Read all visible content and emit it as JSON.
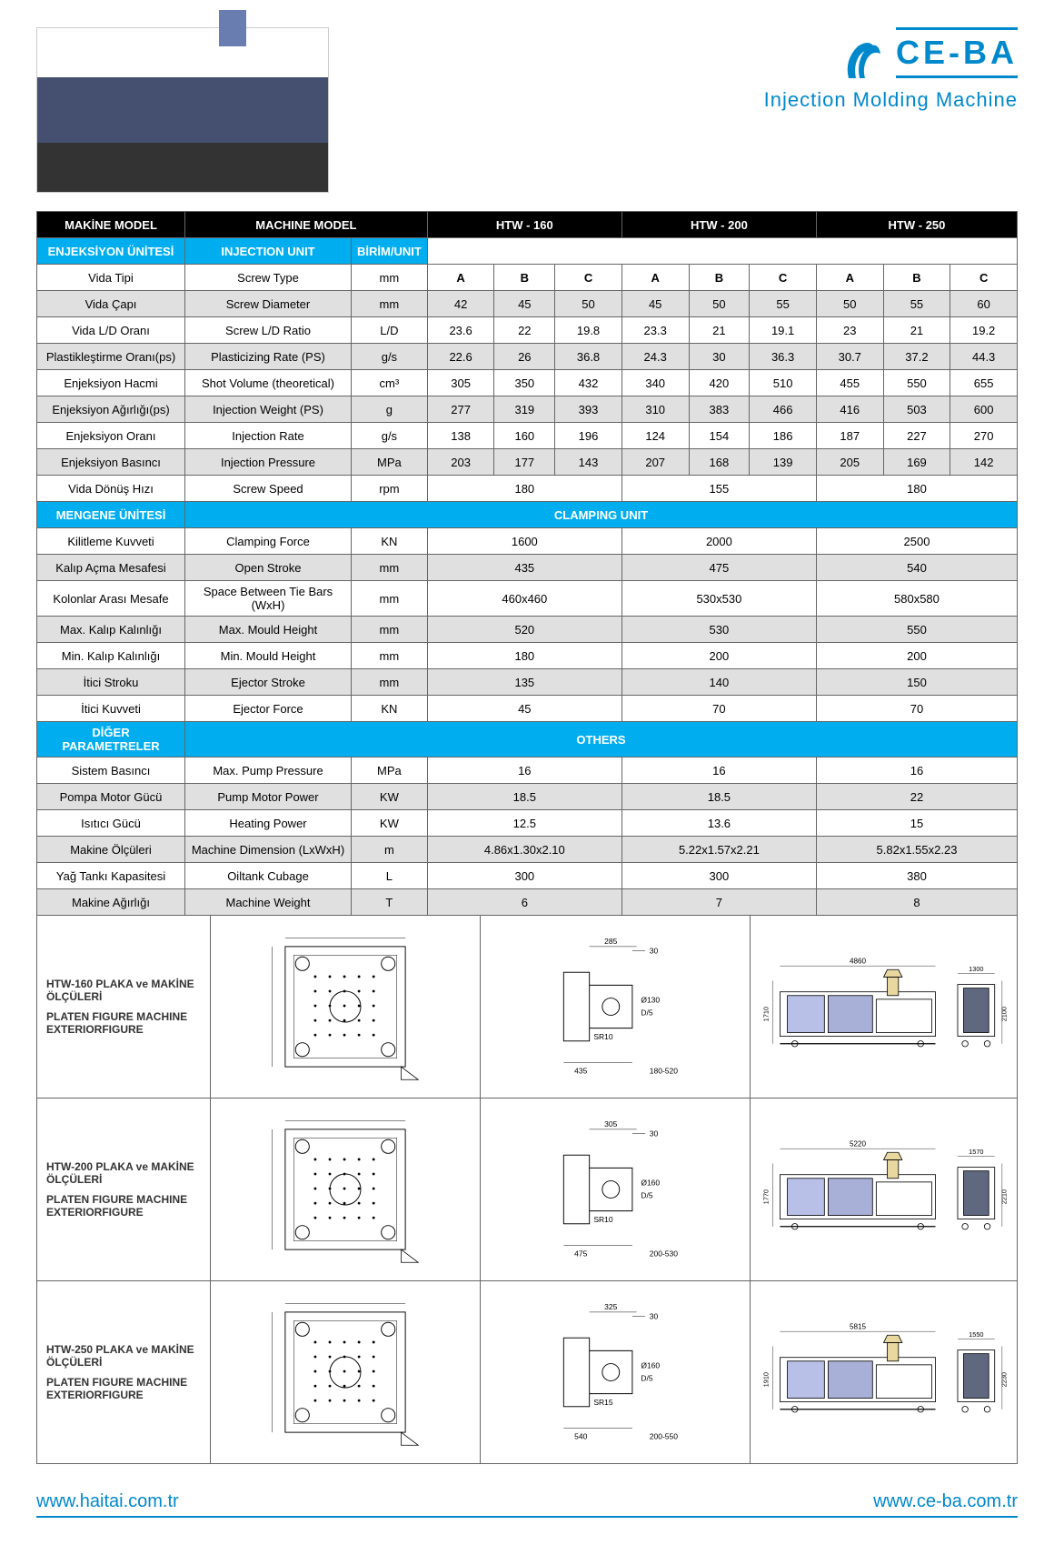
{
  "brand": {
    "name": "CE-BA",
    "tagline": "Injection Molding Machine",
    "color": "#0088cc"
  },
  "table": {
    "header": {
      "makine_model_tr": "MAKİNE MODEL",
      "machine_model_en": "MACHINE MODEL",
      "models": [
        "HTW - 160",
        "HTW - 200",
        "HTW - 250"
      ]
    },
    "sections": {
      "injection_tr": "ENJEKSİYON ÜNİTESİ",
      "injection_en": "INJECTION UNIT",
      "unit_hdr": "BİRİM/UNIT",
      "clamping_tr": "MENGENE ÜNİTESİ",
      "clamping_en": "CLAMPING UNIT",
      "others_tr": "DİĞER PARAMETRELER",
      "others_en": "OTHERS"
    },
    "abc": [
      "A",
      "B",
      "C"
    ],
    "injection_rows": [
      {
        "tr": "Vida Tipi",
        "en": "Screw Type",
        "unit": "mm",
        "vals": [
          "A",
          "B",
          "C",
          "A",
          "B",
          "C",
          "A",
          "B",
          "C"
        ],
        "is_abc": true
      },
      {
        "tr": "Vida Çapı",
        "en": "Screw Diameter",
        "unit": "mm",
        "vals": [
          "42",
          "45",
          "50",
          "45",
          "50",
          "55",
          "50",
          "55",
          "60"
        ],
        "gray": true
      },
      {
        "tr": "Vida L/D Oranı",
        "en": "Screw L/D Ratio",
        "unit": "L/D",
        "vals": [
          "23.6",
          "22",
          "19.8",
          "23.3",
          "21",
          "19.1",
          "23",
          "21",
          "19.2"
        ]
      },
      {
        "tr": "Plastikleştirme Oranı(ps)",
        "en": "Plasticizing Rate (PS)",
        "unit": "g/s",
        "vals": [
          "22.6",
          "26",
          "36.8",
          "24.3",
          "30",
          "36.3",
          "30.7",
          "37.2",
          "44.3"
        ],
        "gray": true
      },
      {
        "tr": "Enjeksiyon Hacmi",
        "en": "Shot Volume (theoretical)",
        "unit": "cm³",
        "vals": [
          "305",
          "350",
          "432",
          "340",
          "420",
          "510",
          "455",
          "550",
          "655"
        ]
      },
      {
        "tr": "Enjeksiyon Ağırlığı(ps)",
        "en": "Injection Weight (PS)",
        "unit": "g",
        "vals": [
          "277",
          "319",
          "393",
          "310",
          "383",
          "466",
          "416",
          "503",
          "600"
        ],
        "gray": true
      },
      {
        "tr": "Enjeksiyon Oranı",
        "en": "Injection Rate",
        "unit": "g/s",
        "vals": [
          "138",
          "160",
          "196",
          "124",
          "154",
          "186",
          "187",
          "227",
          "270"
        ]
      },
      {
        "tr": "Enjeksiyon Basıncı",
        "en": "Injection Pressure",
        "unit": "MPa",
        "vals": [
          "203",
          "177",
          "143",
          "207",
          "168",
          "139",
          "205",
          "169",
          "142"
        ],
        "gray": true
      }
    ],
    "screw_speed": {
      "tr": "Vida Dönüş Hızı",
      "en": "Screw Speed",
      "unit": "rpm",
      "vals": [
        "180",
        "155",
        "180"
      ]
    },
    "clamping_rows": [
      {
        "tr": "Kilitleme Kuvveti",
        "en": "Clamping Force",
        "unit": "KN",
        "vals": [
          "1600",
          "2000",
          "2500"
        ]
      },
      {
        "tr": "Kalıp Açma Mesafesi",
        "en": "Open Stroke",
        "unit": "mm",
        "vals": [
          "435",
          "475",
          "540"
        ],
        "gray": true
      },
      {
        "tr": "Kolonlar Arası Mesafe",
        "en": "Space Between Tie Bars (WxH)",
        "unit": "mm",
        "vals": [
          "460x460",
          "530x530",
          "580x580"
        ]
      },
      {
        "tr": "Max. Kalıp Kalınlığı",
        "en": "Max. Mould Height",
        "unit": "mm",
        "vals": [
          "520",
          "530",
          "550"
        ],
        "gray": true
      },
      {
        "tr": "Min. Kalıp Kalınlığı",
        "en": "Min. Mould Height",
        "unit": "mm",
        "vals": [
          "180",
          "200",
          "200"
        ]
      },
      {
        "tr": "İtici Stroku",
        "en": "Ejector Stroke",
        "unit": "mm",
        "vals": [
          "135",
          "140",
          "150"
        ],
        "gray": true
      },
      {
        "tr": "İtici Kuvveti",
        "en": "Ejector Force",
        "unit": "KN",
        "vals": [
          "45",
          "70",
          "70"
        ]
      }
    ],
    "others_rows": [
      {
        "tr": "Sistem Basıncı",
        "en": "Max. Pump Pressure",
        "unit": "MPa",
        "vals": [
          "16",
          "16",
          "16"
        ]
      },
      {
        "tr": "Pompa Motor Gücü",
        "en": "Pump Motor Power",
        "unit": "KW",
        "vals": [
          "18.5",
          "18.5",
          "22"
        ],
        "gray": true
      },
      {
        "tr": "Isıtıcı Gücü",
        "en": "Heating Power",
        "unit": "KW",
        "vals": [
          "12.5",
          "13.6",
          "15"
        ]
      },
      {
        "tr": "Makine Ölçüleri",
        "en": "Machine Dimension (LxWxH)",
        "unit": "m",
        "vals": [
          "4.86x1.30x2.10",
          "5.22x1.57x2.21",
          "5.82x1.55x2.23"
        ],
        "gray": true
      },
      {
        "tr": "Yağ Tankı Kapasitesi",
        "en": "Oiltank Cubage",
        "unit": "L",
        "vals": [
          "300",
          "300",
          "380"
        ]
      },
      {
        "tr": "Makine Ağırlığı",
        "en": "Machine Weight",
        "unit": "T",
        "vals": [
          "6",
          "7",
          "8"
        ],
        "gray": true
      }
    ]
  },
  "diagrams": [
    {
      "title_tr": "HTW-160 PLAKA ve MAKİNE ÖLÇÜLERİ",
      "title_en": "PLATEN FIGURE MACHINE EXTERIORFIGURE",
      "dims": {
        "top_w": "285",
        "top_h": "30",
        "d_label": "Ø130",
        "sr": "SR10",
        "bottom_a": "435",
        "bottom_b": "180-520",
        "len": "4860",
        "side_w": "1300",
        "h_left": "1710",
        "h_right": "2100"
      }
    },
    {
      "title_tr": "HTW-200 PLAKA ve MAKİNE ÖLÇÜLERİ",
      "title_en": "PLATEN FIGURE MACHINE EXTERIORFIGURE",
      "dims": {
        "top_w": "305",
        "top_h": "30",
        "d_label": "Ø160",
        "sr": "SR10",
        "bottom_a": "475",
        "bottom_b": "200-530",
        "len": "5220",
        "side_w": "1570",
        "h_left": "1770",
        "h_right": "2210"
      }
    },
    {
      "title_tr": "HTW-250 PLAKA ve MAKİNE ÖLÇÜLERİ",
      "title_en": "PLATEN FIGURE MACHINE EXTERIORFIGURE",
      "dims": {
        "top_w": "325",
        "top_h": "30",
        "d_label": "Ø160",
        "sr": "SR15",
        "bottom_a": "540",
        "bottom_b": "200-550",
        "len": "5815",
        "side_w": "1550",
        "h_left": "1910",
        "h_right": "2230"
      }
    }
  ],
  "footer": {
    "left": "www.haitai.com.tr",
    "right": "www.ce-ba.com.tr"
  }
}
